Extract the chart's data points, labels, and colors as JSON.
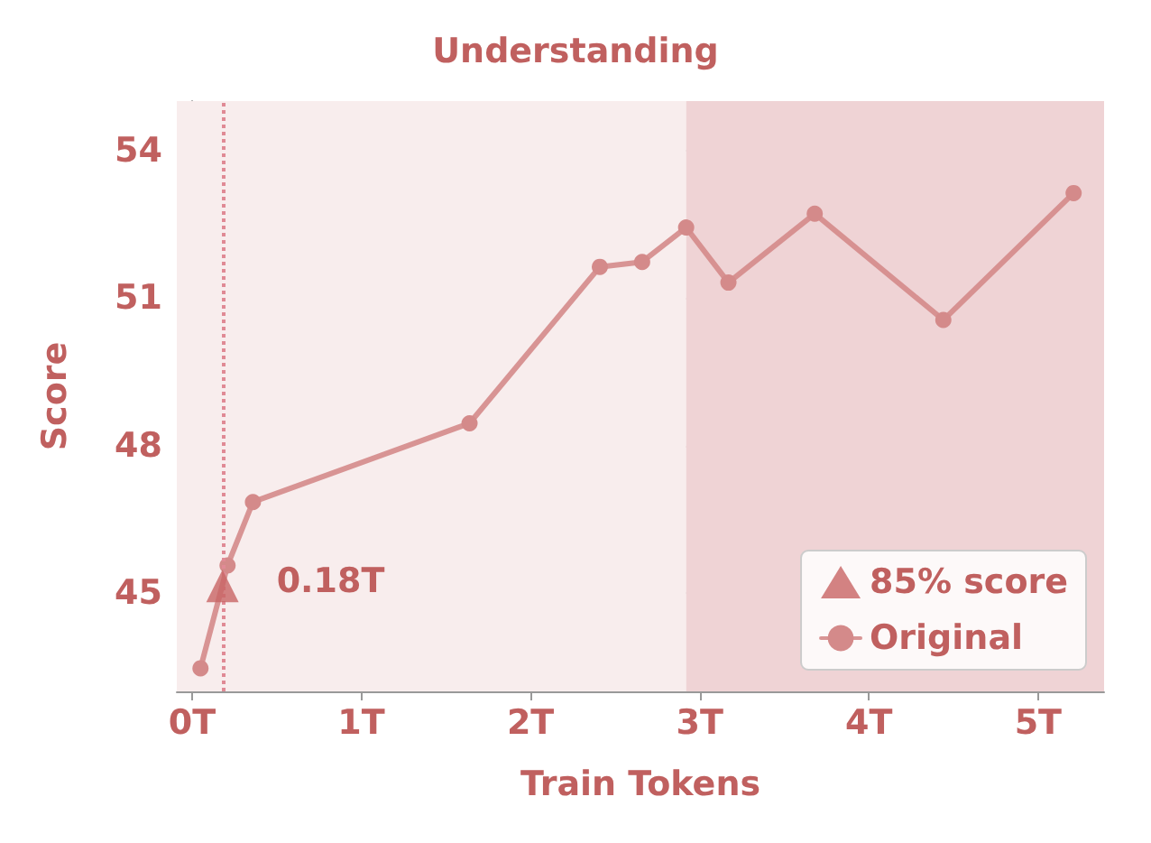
{
  "chart_data": {
    "type": "line",
    "title": "Understanding",
    "xlabel": "Train Tokens",
    "ylabel": "Score",
    "xlim": [
      -0.09,
      5.39
    ],
    "ylim": [
      43,
      55
    ],
    "xticks": [
      {
        "value": 0,
        "label": "0T"
      },
      {
        "value": 1,
        "label": "1T"
      },
      {
        "value": 2,
        "label": "2T"
      },
      {
        "value": 3,
        "label": "3T"
      },
      {
        "value": 4,
        "label": "4T"
      },
      {
        "value": 5,
        "label": "5T"
      }
    ],
    "yticks": [
      45,
      48,
      51,
      54
    ],
    "series": [
      {
        "name": "85% score",
        "type": "scatter",
        "marker": "triangle",
        "color": "#c86464",
        "x": [
          0.18
        ],
        "values": [
          45.14
        ]
      },
      {
        "name": "Original",
        "marker": "circle",
        "color": "#d48a8a",
        "x": [
          0.05,
          0.21,
          0.36,
          1.64,
          2.41,
          2.66,
          2.92,
          3.17,
          3.68,
          4.44,
          5.21
        ],
        "values": [
          43.47,
          45.56,
          46.85,
          48.45,
          51.63,
          51.73,
          52.43,
          51.31,
          52.71,
          50.55,
          53.13
        ]
      }
    ],
    "bands": [
      {
        "axis": "x",
        "from": -0.09,
        "to": 2.92,
        "color": "#f8eded"
      },
      {
        "axis": "x",
        "from": 2.92,
        "to": 5.39,
        "color": "#efd3d5"
      }
    ],
    "ref_lines": [
      {
        "axis": "x",
        "value": 0.18,
        "color": "#e08a95",
        "line_style": "dotted"
      }
    ],
    "annotations": [
      {
        "text": "0.18T",
        "x": 0.18,
        "y": 45.14
      }
    ],
    "grid": true,
    "legend": "bottom right"
  }
}
